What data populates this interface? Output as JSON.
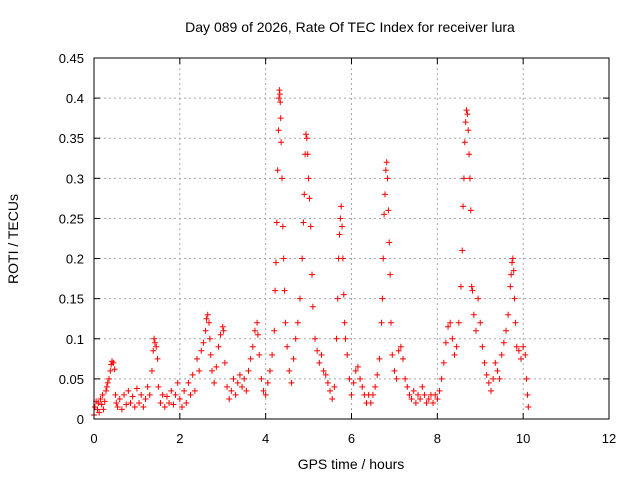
{
  "chart_data": {
    "type": "scatter",
    "title": "Day 089 of 2026, Rate Of TEC Index for receiver lura",
    "xlabel": "GPS time / hours",
    "ylabel": "ROTI / TECUs",
    "xlim": [
      0,
      12
    ],
    "ylim": [
      0,
      0.45
    ],
    "xticks": [
      0,
      2,
      4,
      6,
      8,
      10,
      12
    ],
    "yticks": [
      0,
      0.05,
      0.1,
      0.15,
      0.2,
      0.25,
      0.3,
      0.35,
      0.4,
      0.45
    ],
    "xtick_labels": [
      "0",
      "2",
      "4",
      "6",
      "8",
      "10",
      "12"
    ],
    "ytick_labels": [
      "0",
      "0.05",
      "0.1",
      "0.15",
      "0.2",
      "0.25",
      "0.3",
      "0.35",
      "0.4",
      "0.45"
    ],
    "grid": true,
    "marker": "plus",
    "color": "#ff0000",
    "series": [
      {
        "points": [
          [
            0.0,
            0.005
          ],
          [
            0.02,
            0.015
          ],
          [
            0.05,
            0.022
          ],
          [
            0.08,
            0.012
          ],
          [
            0.1,
            0.02
          ],
          [
            0.12,
            0.008
          ],
          [
            0.15,
            0.025
          ],
          [
            0.18,
            0.018
          ],
          [
            0.2,
            0.03
          ],
          [
            0.22,
            0.012
          ],
          [
            0.25,
            0.022
          ],
          [
            0.28,
            0.035
          ],
          [
            0.3,
            0.04
          ],
          [
            0.32,
            0.045
          ],
          [
            0.35,
            0.05
          ],
          [
            0.38,
            0.06
          ],
          [
            0.4,
            0.068
          ],
          [
            0.42,
            0.072
          ],
          [
            0.45,
            0.07
          ],
          [
            0.48,
            0.062
          ],
          [
            0.5,
            0.03
          ],
          [
            0.52,
            0.02
          ],
          [
            0.55,
            0.015
          ],
          [
            0.6,
            0.025
          ],
          [
            0.65,
            0.012
          ],
          [
            0.7,
            0.03
          ],
          [
            0.75,
            0.018
          ],
          [
            0.8,
            0.035
          ],
          [
            0.85,
            0.02
          ],
          [
            0.9,
            0.028
          ],
          [
            0.95,
            0.015
          ],
          [
            1.0,
            0.038
          ],
          [
            1.05,
            0.02
          ],
          [
            1.1,
            0.03
          ],
          [
            1.15,
            0.015
          ],
          [
            1.2,
            0.025
          ],
          [
            1.25,
            0.04
          ],
          [
            1.3,
            0.03
          ],
          [
            1.35,
            0.06
          ],
          [
            1.38,
            0.085
          ],
          [
            1.4,
            0.1
          ],
          [
            1.42,
            0.095
          ],
          [
            1.45,
            0.09
          ],
          [
            1.48,
            0.075
          ],
          [
            1.5,
            0.04
          ],
          [
            1.55,
            0.02
          ],
          [
            1.6,
            0.03
          ],
          [
            1.65,
            0.015
          ],
          [
            1.7,
            0.028
          ],
          [
            1.75,
            0.02
          ],
          [
            1.8,
            0.035
          ],
          [
            1.85,
            0.018
          ],
          [
            1.9,
            0.03
          ],
          [
            1.95,
            0.045
          ],
          [
            2.0,
            0.025
          ],
          [
            2.05,
            0.015
          ],
          [
            2.1,
            0.035
          ],
          [
            2.15,
            0.02
          ],
          [
            2.2,
            0.045
          ],
          [
            2.25,
            0.03
          ],
          [
            2.3,
            0.055
          ],
          [
            2.35,
            0.035
          ],
          [
            2.4,
            0.075
          ],
          [
            2.45,
            0.06
          ],
          [
            2.5,
            0.085
          ],
          [
            2.55,
            0.095
          ],
          [
            2.6,
            0.11
          ],
          [
            2.62,
            0.125
          ],
          [
            2.65,
            0.13
          ],
          [
            2.68,
            0.12
          ],
          [
            2.7,
            0.1
          ],
          [
            2.72,
            0.08
          ],
          [
            2.75,
            0.06
          ],
          [
            2.8,
            0.045
          ],
          [
            2.85,
            0.065
          ],
          [
            2.9,
            0.09
          ],
          [
            2.95,
            0.105
          ],
          [
            3.0,
            0.115
          ],
          [
            3.02,
            0.11
          ],
          [
            3.05,
            0.07
          ],
          [
            3.1,
            0.04
          ],
          [
            3.15,
            0.025
          ],
          [
            3.2,
            0.035
          ],
          [
            3.25,
            0.05
          ],
          [
            3.3,
            0.03
          ],
          [
            3.35,
            0.045
          ],
          [
            3.4,
            0.055
          ],
          [
            3.45,
            0.04
          ],
          [
            3.5,
            0.05
          ],
          [
            3.55,
            0.035
          ],
          [
            3.6,
            0.06
          ],
          [
            3.65,
            0.075
          ],
          [
            3.7,
            0.09
          ],
          [
            3.75,
            0.11
          ],
          [
            3.8,
            0.12
          ],
          [
            3.82,
            0.105
          ],
          [
            3.85,
            0.08
          ],
          [
            3.9,
            0.05
          ],
          [
            3.95,
            0.035
          ],
          [
            4.0,
            0.03
          ],
          [
            4.05,
            0.045
          ],
          [
            4.1,
            0.06
          ],
          [
            4.15,
            0.08
          ],
          [
            4.2,
            0.11
          ],
          [
            4.22,
            0.16
          ],
          [
            4.24,
            0.195
          ],
          [
            4.26,
            0.245
          ],
          [
            4.28,
            0.31
          ],
          [
            4.3,
            0.36
          ],
          [
            4.31,
            0.4
          ],
          [
            4.32,
            0.41
          ],
          [
            4.33,
            0.405
          ],
          [
            4.34,
            0.395
          ],
          [
            4.35,
            0.375
          ],
          [
            4.36,
            0.345
          ],
          [
            4.38,
            0.3
          ],
          [
            4.4,
            0.24
          ],
          [
            4.42,
            0.2
          ],
          [
            4.44,
            0.16
          ],
          [
            4.46,
            0.12
          ],
          [
            4.5,
            0.09
          ],
          [
            4.55,
            0.06
          ],
          [
            4.6,
            0.045
          ],
          [
            4.65,
            0.075
          ],
          [
            4.7,
            0.1
          ],
          [
            4.75,
            0.12
          ],
          [
            4.8,
            0.15
          ],
          [
            4.85,
            0.2
          ],
          [
            4.88,
            0.245
          ],
          [
            4.9,
            0.28
          ],
          [
            4.92,
            0.33
          ],
          [
            4.94,
            0.355
          ],
          [
            4.96,
            0.35
          ],
          [
            4.98,
            0.33
          ],
          [
            5.0,
            0.3
          ],
          [
            5.02,
            0.275
          ],
          [
            5.05,
            0.24
          ],
          [
            5.08,
            0.18
          ],
          [
            5.1,
            0.14
          ],
          [
            5.15,
            0.1
          ],
          [
            5.2,
            0.085
          ],
          [
            5.25,
            0.07
          ],
          [
            5.3,
            0.08
          ],
          [
            5.35,
            0.06
          ],
          [
            5.4,
            0.055
          ],
          [
            5.45,
            0.045
          ],
          [
            5.5,
            0.035
          ],
          [
            5.55,
            0.025
          ],
          [
            5.6,
            0.04
          ],
          [
            5.65,
            0.1
          ],
          [
            5.68,
            0.15
          ],
          [
            5.7,
            0.2
          ],
          [
            5.72,
            0.23
          ],
          [
            5.74,
            0.25
          ],
          [
            5.76,
            0.265
          ],
          [
            5.78,
            0.24
          ],
          [
            5.8,
            0.2
          ],
          [
            5.82,
            0.155
          ],
          [
            5.84,
            0.12
          ],
          [
            5.86,
            0.1
          ],
          [
            5.9,
            0.08
          ],
          [
            5.95,
            0.05
          ],
          [
            6.0,
            0.03
          ],
          [
            6.05,
            0.045
          ],
          [
            6.1,
            0.06
          ],
          [
            6.15,
            0.065
          ],
          [
            6.2,
            0.05
          ],
          [
            6.25,
            0.04
          ],
          [
            6.3,
            0.03
          ],
          [
            6.35,
            0.02
          ],
          [
            6.4,
            0.03
          ],
          [
            6.45,
            0.02
          ],
          [
            6.5,
            0.03
          ],
          [
            6.55,
            0.04
          ],
          [
            6.6,
            0.055
          ],
          [
            6.65,
            0.075
          ],
          [
            6.7,
            0.12
          ],
          [
            6.72,
            0.15
          ],
          [
            6.74,
            0.2
          ],
          [
            6.76,
            0.255
          ],
          [
            6.78,
            0.28
          ],
          [
            6.8,
            0.31
          ],
          [
            6.82,
            0.32
          ],
          [
            6.84,
            0.3
          ],
          [
            6.86,
            0.26
          ],
          [
            6.88,
            0.22
          ],
          [
            6.9,
            0.18
          ],
          [
            6.92,
            0.12
          ],
          [
            6.95,
            0.08
          ],
          [
            7.0,
            0.06
          ],
          [
            7.05,
            0.05
          ],
          [
            7.1,
            0.085
          ],
          [
            7.15,
            0.09
          ],
          [
            7.2,
            0.075
          ],
          [
            7.25,
            0.05
          ],
          [
            7.3,
            0.04
          ],
          [
            7.35,
            0.03
          ],
          [
            7.4,
            0.025
          ],
          [
            7.45,
            0.035
          ],
          [
            7.5,
            0.02
          ],
          [
            7.55,
            0.03
          ],
          [
            7.6,
            0.025
          ],
          [
            7.65,
            0.04
          ],
          [
            7.7,
            0.03
          ],
          [
            7.75,
            0.02
          ],
          [
            7.8,
            0.025
          ],
          [
            7.85,
            0.03
          ],
          [
            7.9,
            0.02
          ],
          [
            7.95,
            0.03
          ],
          [
            8.0,
            0.025
          ],
          [
            8.05,
            0.035
          ],
          [
            8.1,
            0.05
          ],
          [
            8.15,
            0.07
          ],
          [
            8.2,
            0.095
          ],
          [
            8.25,
            0.115
          ],
          [
            8.3,
            0.12
          ],
          [
            8.35,
            0.1
          ],
          [
            8.4,
            0.08
          ],
          [
            8.45,
            0.09
          ],
          [
            8.5,
            0.12
          ],
          [
            8.55,
            0.165
          ],
          [
            8.58,
            0.21
          ],
          [
            8.6,
            0.265
          ],
          [
            8.62,
            0.3
          ],
          [
            8.64,
            0.345
          ],
          [
            8.66,
            0.37
          ],
          [
            8.68,
            0.385
          ],
          [
            8.7,
            0.38
          ],
          [
            8.72,
            0.36
          ],
          [
            8.74,
            0.33
          ],
          [
            8.76,
            0.3
          ],
          [
            8.78,
            0.26
          ],
          [
            8.8,
            0.165
          ],
          [
            8.82,
            0.16
          ],
          [
            8.85,
            0.13
          ],
          [
            8.9,
            0.11
          ],
          [
            8.95,
            0.15
          ],
          [
            9.0,
            0.12
          ],
          [
            9.05,
            0.09
          ],
          [
            9.1,
            0.07
          ],
          [
            9.15,
            0.055
          ],
          [
            9.2,
            0.045
          ],
          [
            9.25,
            0.035
          ],
          [
            9.3,
            0.05
          ],
          [
            9.35,
            0.07
          ],
          [
            9.4,
            0.06
          ],
          [
            9.45,
            0.05
          ],
          [
            9.5,
            0.08
          ],
          [
            9.55,
            0.095
          ],
          [
            9.6,
            0.11
          ],
          [
            9.65,
            0.13
          ],
          [
            9.7,
            0.165
          ],
          [
            9.72,
            0.18
          ],
          [
            9.74,
            0.195
          ],
          [
            9.76,
            0.2
          ],
          [
            9.78,
            0.185
          ],
          [
            9.8,
            0.15
          ],
          [
            9.82,
            0.12
          ],
          [
            9.85,
            0.09
          ],
          [
            9.9,
            0.085
          ],
          [
            9.95,
            0.075
          ],
          [
            10.0,
            0.09
          ],
          [
            10.05,
            0.08
          ],
          [
            10.08,
            0.05
          ],
          [
            10.1,
            0.03
          ],
          [
            10.12,
            0.015
          ]
        ]
      }
    ]
  }
}
